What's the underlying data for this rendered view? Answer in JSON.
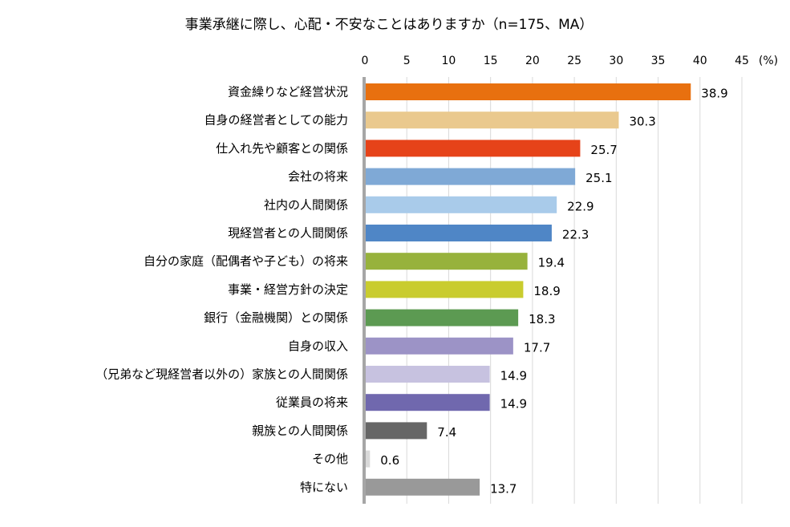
{
  "chart_data": {
    "type": "bar",
    "orientation": "horizontal",
    "title": "事業承継に際し、心配・不安なことはありますか（n=175、MA）",
    "unit_label": "(%)",
    "xlim": [
      0,
      45
    ],
    "xticks": [
      0,
      5,
      10,
      15,
      20,
      25,
      30,
      35,
      40,
      45
    ],
    "grid": true,
    "categories": [
      "資金繰りなど経営状況",
      "自身の経営者としての能力",
      "仕入れ先や顧客との関係",
      "会社の将来",
      "社内の人間関係",
      "現経営者との人間関係",
      "自分の家庭（配偶者や子ども）の将来",
      "事業・経営方針の決定",
      "銀行（金融機関）との関係",
      "自身の収入",
      "（兄弟など現経営者以外の）家族との人間関係",
      "従業員の将来",
      "親族との人間関係",
      "その他",
      "特にない"
    ],
    "values": [
      38.9,
      30.3,
      25.7,
      25.1,
      22.9,
      22.3,
      19.4,
      18.9,
      18.3,
      17.7,
      14.9,
      14.9,
      7.4,
      0.6,
      13.7
    ],
    "value_labels": [
      "38.9",
      "30.3",
      "25.7",
      "25.1",
      "22.9",
      "22.3",
      "19.4",
      "18.9",
      "18.3",
      "17.7",
      "14.9",
      "14.9",
      "7.4",
      "0.6",
      "13.7"
    ],
    "colors": [
      "#E8700F",
      "#EAC98E",
      "#E64319",
      "#7FA9D6",
      "#A9CBEA",
      "#4F86C6",
      "#97B23C",
      "#C9CC2E",
      "#5C9A52",
      "#9C93C6",
      "#C7C2E0",
      "#7068AE",
      "#666666",
      "#D9D9D9",
      "#999999"
    ]
  }
}
